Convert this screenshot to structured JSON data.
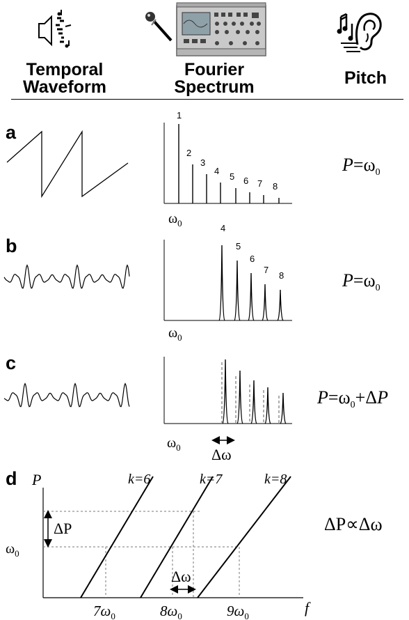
{
  "header": {
    "temporal": [
      "Temporal",
      "Waveform"
    ],
    "fourier": [
      "Fourier",
      "Spectrum"
    ],
    "pitch": "Pitch"
  },
  "panels": {
    "a": {
      "label": "a",
      "harmonic_labels": [
        "1",
        "2",
        "3",
        "4",
        "5",
        "6",
        "7",
        "8"
      ],
      "omega": "ω",
      "sub": "0",
      "eq": {
        "lhs": "P",
        "rhs": "=ω",
        "sub": "0"
      }
    },
    "b": {
      "label": "b",
      "harmonic_labels": [
        "4",
        "5",
        "6",
        "7",
        "8"
      ],
      "omega": "ω",
      "sub": "0",
      "eq": {
        "lhs": "P",
        "rhs": "=ω",
        "sub": "0"
      }
    },
    "c": {
      "label": "c",
      "omega": "ω",
      "sub": "0",
      "delta_omega": "Δω",
      "eq": {
        "lhs": "P",
        "rhs": "=ω",
        "sub": "0",
        "tail": "+Δ",
        "tail_var": "P"
      }
    },
    "d": {
      "label": "d",
      "y_axis": "P",
      "x_axis": "f",
      "curves": [
        "k=6",
        "k=7",
        "k=8"
      ],
      "x_ticks": [
        "7ω",
        "8ω",
        "9ω"
      ],
      "tick_sub": "0",
      "y_tick": "ω",
      "delta_p": "ΔP",
      "delta_omega": "Δω",
      "relation": "ΔP∝Δω"
    }
  },
  "icons": [
    "speaker-icon",
    "microphone-icon",
    "oscilloscope-icon",
    "ear-icon"
  ]
}
